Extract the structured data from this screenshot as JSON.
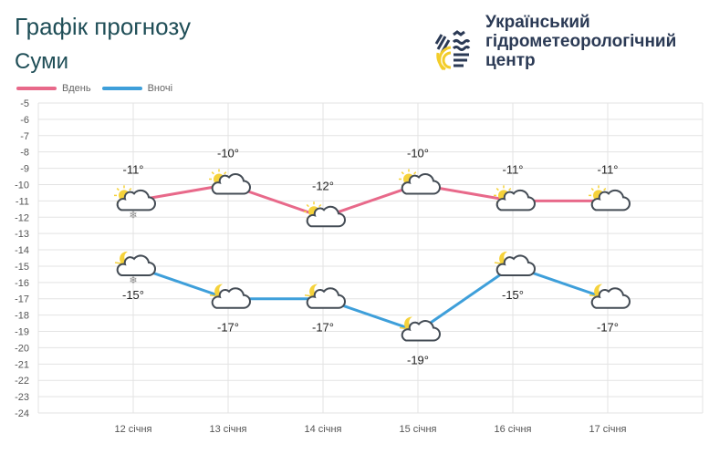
{
  "header": {
    "title": "Графік прогнозу",
    "city": "Суми"
  },
  "organization": {
    "line1": "Український",
    "line2": "гідрометеорологічний",
    "line3": "центр"
  },
  "chart_data": {
    "type": "line",
    "categories": [
      "12 січня",
      "13 січня",
      "14 січня",
      "15 січня",
      "16 січня",
      "17 січня"
    ],
    "series": [
      {
        "name": "Вдень",
        "color": "#e8698a",
        "values": [
          -11,
          -10,
          -12,
          -10,
          -11,
          -11
        ],
        "labels": [
          "-11°",
          "-10°",
          "-12°",
          "-10°",
          "-11°",
          "-11°"
        ],
        "icons": [
          "partly-cloudy-day",
          "partly-cloudy-day",
          "partly-cloudy-day",
          "partly-cloudy-day",
          "partly-cloudy-day",
          "partly-cloudy-day"
        ],
        "snow": [
          true,
          false,
          false,
          false,
          false,
          false
        ]
      },
      {
        "name": "Вночі",
        "color": "#3e9fda",
        "values": [
          -15,
          -17,
          -17,
          -19,
          -15,
          -17
        ],
        "labels": [
          "-15°",
          "-17°",
          "-17°",
          "-19°",
          "-15°",
          "-17°"
        ],
        "icons": [
          "partly-cloudy-night",
          "partly-cloudy-night",
          "partly-cloudy-night",
          "partly-cloudy-night",
          "partly-cloudy-night",
          "partly-cloudy-night"
        ],
        "snow": [
          true,
          false,
          false,
          false,
          false,
          false
        ]
      }
    ],
    "ylim": [
      -24,
      -5
    ],
    "yticks": [
      "-5",
      "-6",
      "-7",
      "-8",
      "-9",
      "-10",
      "-11",
      "-12",
      "-13",
      "-14",
      "-15",
      "-16",
      "-17",
      "-18",
      "-19",
      "-20",
      "-21",
      "-22",
      "-23",
      "-24"
    ],
    "grid": true,
    "legend": "top-left"
  }
}
